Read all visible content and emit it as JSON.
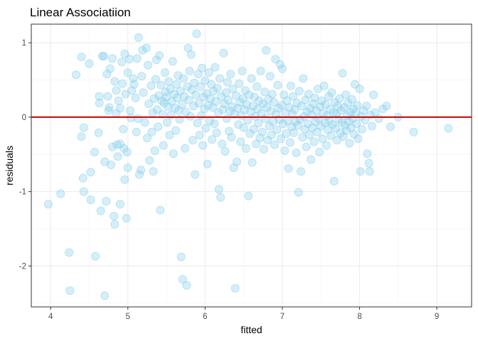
{
  "chart_data": {
    "type": "scatter",
    "title": "Linear Associatiion",
    "xlabel": "fitted",
    "ylabel": "residuals",
    "xlim": [
      3.75,
      9.45
    ],
    "ylim": [
      -2.55,
      1.25
    ],
    "x_ticks": [
      4,
      5,
      6,
      7,
      8,
      9
    ],
    "y_ticks": [
      1,
      0,
      -1,
      -2
    ],
    "grid": true,
    "legend": "none",
    "reference_line": {
      "y": 0,
      "color": "#cc0000"
    },
    "point_color": "#87ceeb",
    "points": [
      [
        3.97,
        -1.17
      ],
      [
        4.13,
        -1.03
      ],
      [
        4.24,
        -1.82
      ],
      [
        4.25,
        -2.33
      ],
      [
        4.33,
        0.57
      ],
      [
        4.4,
        0.81
      ],
      [
        4.4,
        -0.26
      ],
      [
        4.42,
        -0.82
      ],
      [
        4.43,
        -0.14
      ],
      [
        4.43,
        -1.0
      ],
      [
        4.5,
        0.72
      ],
      [
        4.52,
        -1.11
      ],
      [
        4.52,
        -0.74
      ],
      [
        4.57,
        -0.47
      ],
      [
        4.58,
        -1.87
      ],
      [
        4.63,
        0.28
      ],
      [
        4.63,
        0.19
      ],
      [
        4.62,
        -0.21
      ],
      [
        4.65,
        -1.26
      ],
      [
        4.67,
        0.82
      ],
      [
        4.69,
        0.82
      ],
      [
        4.7,
        -2.4
      ],
      [
        4.7,
        -0.6
      ],
      [
        4.72,
        -1.13
      ],
      [
        4.73,
        0.58
      ],
      [
        4.74,
        0.28
      ],
      [
        4.75,
        0.09
      ],
      [
        4.76,
        0.13
      ],
      [
        4.77,
        0.65
      ],
      [
        4.78,
        -0.64
      ],
      [
        4.8,
        0.79
      ],
      [
        4.8,
        -0.4
      ],
      [
        4.82,
        -1.33
      ],
      [
        4.83,
        -1.44
      ],
      [
        4.83,
        0.48
      ],
      [
        4.85,
        0.36
      ],
      [
        4.85,
        0.05
      ],
      [
        4.86,
        -0.37
      ],
      [
        4.87,
        -0.53
      ],
      [
        4.88,
        0.22
      ],
      [
        4.9,
        0.12
      ],
      [
        4.9,
        -0.36
      ],
      [
        4.9,
        -1.17
      ],
      [
        4.92,
        0.74
      ],
      [
        4.93,
        0.45
      ],
      [
        4.94,
        -0.16
      ],
      [
        4.95,
        -0.42
      ],
      [
        4.96,
        0.85
      ],
      [
        4.96,
        -0.84
      ],
      [
        4.97,
        0.31
      ],
      [
        4.98,
        -1.36
      ],
      [
        4.99,
        -0.47
      ],
      [
        5.0,
        0.6
      ],
      [
        5.0,
        -0.68
      ],
      [
        5.02,
        0.78
      ],
      [
        5.03,
        0.09
      ],
      [
        5.04,
        -0.01
      ],
      [
        5.05,
        0.36
      ],
      [
        5.07,
        0.52
      ],
      [
        5.08,
        0.44
      ],
      [
        5.1,
        0.26
      ],
      [
        5.11,
        -0.2
      ],
      [
        5.12,
        0.79
      ],
      [
        5.13,
        -0.02
      ],
      [
        5.14,
        1.07
      ],
      [
        5.15,
        -0.77
      ],
      [
        5.17,
        -0.71
      ],
      [
        5.18,
        0.55
      ],
      [
        5.19,
        0.9
      ],
      [
        5.2,
        0.33
      ],
      [
        5.22,
        -0.07
      ],
      [
        5.24,
        0.93
      ],
      [
        5.25,
        -0.28
      ],
      [
        5.26,
        0.7
      ],
      [
        5.27,
        0.18
      ],
      [
        5.28,
        -0.58
      ],
      [
        5.3,
        0.42
      ],
      [
        5.31,
        -0.2
      ],
      [
        5.32,
        0.06
      ],
      [
        5.33,
        -0.73
      ],
      [
        5.34,
        0.25
      ],
      [
        5.35,
        -0.45
      ],
      [
        5.36,
        0.51
      ],
      [
        5.37,
        0.77
      ],
      [
        5.38,
        0.1
      ],
      [
        5.39,
        -0.13
      ],
      [
        5.4,
        0.29
      ],
      [
        5.41,
        0.83
      ],
      [
        5.42,
        -1.25
      ],
      [
        5.43,
        0.43
      ],
      [
        5.44,
        0.22
      ],
      [
        5.45,
        0.04
      ],
      [
        5.46,
        -0.38
      ],
      [
        5.47,
        0.19
      ],
      [
        5.48,
        0.6
      ],
      [
        5.49,
        0.34
      ],
      [
        5.5,
        0.27
      ],
      [
        5.51,
        -0.07
      ],
      [
        5.52,
        0.14
      ],
      [
        5.53,
        0.48
      ],
      [
        5.54,
        -0.24
      ],
      [
        5.55,
        0.38
      ],
      [
        5.56,
        0.03
      ],
      [
        5.57,
        0.21
      ],
      [
        5.58,
        0.75
      ],
      [
        5.59,
        -0.49
      ],
      [
        5.6,
        0.31
      ],
      [
        5.61,
        0.12
      ],
      [
        5.62,
        -0.18
      ],
      [
        5.63,
        0.44
      ],
      [
        5.64,
        0.26
      ],
      [
        5.65,
        0.56
      ],
      [
        5.66,
        0.09
      ],
      [
        5.67,
        -0.03
      ],
      [
        5.68,
        0.35
      ],
      [
        5.69,
        -1.88
      ],
      [
        5.7,
        0.17
      ],
      [
        5.71,
        -2.18
      ],
      [
        5.72,
        0.52
      ],
      [
        5.73,
        0.28
      ],
      [
        5.74,
        -0.42
      ],
      [
        5.75,
        0.07
      ],
      [
        5.76,
        -2.26
      ],
      [
        5.77,
        0.41
      ],
      [
        5.78,
        0.93
      ],
      [
        5.79,
        0.23
      ],
      [
        5.8,
        0.62
      ],
      [
        5.81,
        0.01
      ],
      [
        5.82,
        0.84
      ],
      [
        5.83,
        0.37
      ],
      [
        5.84,
        -0.31
      ],
      [
        5.85,
        0.15
      ],
      [
        5.86,
        0.46
      ],
      [
        5.87,
        -0.77
      ],
      [
        5.88,
        0.3
      ],
      [
        5.89,
        1.12
      ],
      [
        5.9,
        -0.08
      ],
      [
        5.91,
        0.58
      ],
      [
        5.92,
        0.19
      ],
      [
        5.93,
        -0.24
      ],
      [
        5.94,
        0.41
      ],
      [
        5.95,
        0.02
      ],
      [
        5.96,
        0.66
      ],
      [
        5.97,
        -0.38
      ],
      [
        5.98,
        0.27
      ],
      [
        5.99,
        0.11
      ],
      [
        6.0,
        0.49
      ],
      [
        6.01,
        -0.15
      ],
      [
        6.02,
        0.32
      ],
      [
        6.03,
        -0.63
      ],
      [
        6.04,
        0.16
      ],
      [
        6.05,
        0.6
      ],
      [
        6.06,
        -0.05
      ],
      [
        6.07,
        0.25
      ],
      [
        6.08,
        0.44
      ],
      [
        6.09,
        -0.3
      ],
      [
        6.1,
        0.13
      ],
      [
        6.11,
        0.35
      ],
      [
        6.12,
        -0.09
      ],
      [
        6.13,
        0.67
      ],
      [
        6.14,
        0.21
      ],
      [
        6.15,
        -0.21
      ],
      [
        6.16,
        0.39
      ],
      [
        6.17,
        0.06
      ],
      [
        6.18,
        -0.97
      ],
      [
        6.19,
        0.52
      ],
      [
        6.2,
        -1.08
      ],
      [
        6.21,
        0.28
      ],
      [
        6.22,
        -0.36
      ],
      [
        6.23,
        0.1
      ],
      [
        6.24,
        0.86
      ],
      [
        6.25,
        0.18
      ],
      [
        6.26,
        -0.46
      ],
      [
        6.27,
        0.33
      ],
      [
        6.28,
        -0.02
      ],
      [
        6.29,
        0.47
      ],
      [
        6.3,
        0.23
      ],
      [
        6.31,
        -0.19
      ],
      [
        6.32,
        0.08
      ],
      [
        6.33,
        0.58
      ],
      [
        6.34,
        -0.27
      ],
      [
        6.35,
        0.14
      ],
      [
        6.36,
        0.38
      ],
      [
        6.37,
        -0.68
      ],
      [
        6.38,
        0.04
      ],
      [
        6.39,
        -2.3
      ],
      [
        6.4,
        0.29
      ],
      [
        6.41,
        -0.6
      ],
      [
        6.42,
        0.12
      ],
      [
        6.43,
        -0.1
      ],
      [
        6.44,
        0.45
      ],
      [
        6.45,
        0.2
      ],
      [
        6.46,
        -0.33
      ],
      [
        6.47,
        0.02
      ],
      [
        6.48,
        0.62
      ],
      [
        6.49,
        0.25
      ],
      [
        6.5,
        -0.14
      ],
      [
        6.51,
        0.1
      ],
      [
        6.52,
        0.36
      ],
      [
        6.53,
        -0.42
      ],
      [
        6.54,
        0.17
      ],
      [
        6.55,
        -0.04
      ],
      [
        6.56,
        -1.06
      ],
      [
        6.57,
        0.3
      ],
      [
        6.58,
        -0.22
      ],
      [
        6.59,
        0.07
      ],
      [
        6.6,
        0.52
      ],
      [
        6.61,
        -0.61
      ],
      [
        6.62,
        0.15
      ],
      [
        6.63,
        -0.16
      ],
      [
        6.64,
        0.27
      ],
      [
        6.65,
        0.01
      ],
      [
        6.66,
        -0.36
      ],
      [
        6.67,
        0.41
      ],
      [
        6.68,
        0.11
      ],
      [
        6.69,
        -0.08
      ],
      [
        6.7,
        0.22
      ],
      [
        6.71,
        -0.28
      ],
      [
        6.72,
        0.62
      ],
      [
        6.73,
        0.05
      ],
      [
        6.74,
        -0.2
      ],
      [
        6.75,
        0.18
      ],
      [
        6.76,
        -0.43
      ],
      [
        6.77,
        0.34
      ],
      [
        6.78,
        -0.02
      ],
      [
        6.79,
        0.9
      ],
      [
        6.8,
        0.13
      ],
      [
        6.81,
        -0.31
      ],
      [
        6.82,
        0.24
      ],
      [
        6.83,
        -0.12
      ],
      [
        6.84,
        0.55
      ],
      [
        6.85,
        0.08
      ],
      [
        6.86,
        -0.24
      ],
      [
        6.87,
        0.31
      ],
      [
        6.88,
        -0.06
      ],
      [
        6.89,
        0.2
      ],
      [
        6.9,
        -0.37
      ],
      [
        6.91,
        0.78
      ],
      [
        6.92,
        0.04
      ],
      [
        6.93,
        -0.17
      ],
      [
        6.94,
        0.43
      ],
      [
        6.95,
        0.12
      ],
      [
        6.96,
        -0.03
      ],
      [
        6.97,
        0.71
      ],
      [
        6.98,
        -0.29
      ],
      [
        6.99,
        0.16
      ],
      [
        7.0,
        0.65
      ],
      [
        7.01,
        -0.09
      ],
      [
        7.02,
        0.3
      ],
      [
        7.03,
        -0.45
      ],
      [
        7.04,
        0.06
      ],
      [
        7.05,
        -0.22
      ],
      [
        7.06,
        0.22
      ],
      [
        7.07,
        -0.05
      ],
      [
        7.08,
        -0.69
      ],
      [
        7.09,
        0.13
      ],
      [
        7.1,
        -0.34
      ],
      [
        7.11,
        0.42
      ],
      [
        7.12,
        -0.13
      ],
      [
        7.13,
        0.04
      ],
      [
        7.14,
        0.28
      ],
      [
        7.15,
        -0.21
      ],
      [
        7.16,
        0.1
      ],
      [
        7.17,
        -0.06
      ],
      [
        7.18,
        -0.48
      ],
      [
        7.19,
        0.19
      ],
      [
        7.2,
        -0.11
      ],
      [
        7.21,
        -1.01
      ],
      [
        7.22,
        0.35
      ],
      [
        7.23,
        -0.03
      ],
      [
        7.24,
        -0.73
      ],
      [
        7.25,
        0.15
      ],
      [
        7.26,
        -0.27
      ],
      [
        7.27,
        0.52
      ],
      [
        7.28,
        0.01
      ],
      [
        7.29,
        -0.16
      ],
      [
        7.3,
        0.23
      ],
      [
        7.31,
        -0.4
      ],
      [
        7.32,
        0.07
      ],
      [
        7.33,
        -0.09
      ],
      [
        7.34,
        0.31
      ],
      [
        7.35,
        -0.24
      ],
      [
        7.36,
        0.12
      ],
      [
        7.37,
        -0.57
      ],
      [
        7.38,
        0.03
      ],
      [
        7.39,
        -0.14
      ],
      [
        7.4,
        0.18
      ],
      [
        7.41,
        -0.33
      ],
      [
        7.42,
        0.26
      ],
      [
        7.43,
        -0.06
      ],
      [
        7.44,
        0.09
      ],
      [
        7.45,
        -0.2
      ],
      [
        7.46,
        0.38
      ],
      [
        7.47,
        -0.02
      ],
      [
        7.48,
        -0.47
      ],
      [
        7.49,
        0.14
      ],
      [
        7.5,
        -0.12
      ],
      [
        7.51,
        0.22
      ],
      [
        7.52,
        -0.29
      ],
      [
        7.53,
        0.05
      ],
      [
        7.54,
        0.42
      ],
      [
        7.55,
        -0.08
      ],
      [
        7.56,
        0.17
      ],
      [
        7.57,
        -0.38
      ],
      [
        7.58,
        0.02
      ],
      [
        7.59,
        -0.17
      ],
      [
        7.6,
        0.28
      ],
      [
        7.61,
        -0.05
      ],
      [
        7.62,
        0.11
      ],
      [
        7.63,
        -0.25
      ],
      [
        7.64,
        0.33
      ],
      [
        7.65,
        -0.1
      ],
      [
        7.66,
        0.06
      ],
      [
        7.67,
        -0.86
      ],
      [
        7.68,
        0.2
      ],
      [
        7.69,
        -0.15
      ],
      [
        7.7,
        0.04
      ],
      [
        7.71,
        -0.31
      ],
      [
        7.72,
        0.15
      ],
      [
        7.73,
        -0.03
      ],
      [
        7.74,
        0.25
      ],
      [
        7.75,
        -0.21
      ],
      [
        7.76,
        0.09
      ],
      [
        7.77,
        -0.07
      ],
      [
        7.78,
        0.59
      ],
      [
        7.79,
        -0.26
      ],
      [
        7.8,
        0.13
      ],
      [
        7.81,
        -0.11
      ],
      [
        7.82,
        0.3
      ],
      [
        7.83,
        -0.18
      ],
      [
        7.84,
        0.02
      ],
      [
        7.85,
        0.19
      ],
      [
        7.86,
        -0.06
      ],
      [
        7.87,
        -0.35
      ],
      [
        7.88,
        0.07
      ],
      [
        7.89,
        -0.14
      ],
      [
        7.9,
        0.24
      ],
      [
        7.91,
        -0.02
      ],
      [
        7.92,
        0.11
      ],
      [
        7.93,
        -0.23
      ],
      [
        7.94,
        0.44
      ],
      [
        7.95,
        0.05
      ],
      [
        7.96,
        -0.09
      ],
      [
        7.97,
        0.16
      ],
      [
        7.98,
        -0.29
      ],
      [
        8.0,
        0.38
      ],
      [
        8.01,
        -0.73
      ],
      [
        8.02,
        0.01
      ],
      [
        8.03,
        -0.16
      ],
      [
        8.05,
        0.09
      ],
      [
        8.07,
        -0.04
      ],
      [
        8.09,
        0.15
      ],
      [
        8.1,
        -0.49
      ],
      [
        8.12,
        -0.62
      ],
      [
        8.13,
        -0.73
      ],
      [
        8.14,
        0.03
      ],
      [
        8.16,
        -0.12
      ],
      [
        8.18,
        0.3
      ],
      [
        8.2,
        0.06
      ],
      [
        8.25,
        -0.02
      ],
      [
        8.3,
        0.11
      ],
      [
        8.35,
        0.15
      ],
      [
        8.4,
        -0.13
      ],
      [
        8.5,
        0.0
      ],
      [
        8.7,
        -0.2
      ],
      [
        9.15,
        -0.15
      ]
    ]
  }
}
